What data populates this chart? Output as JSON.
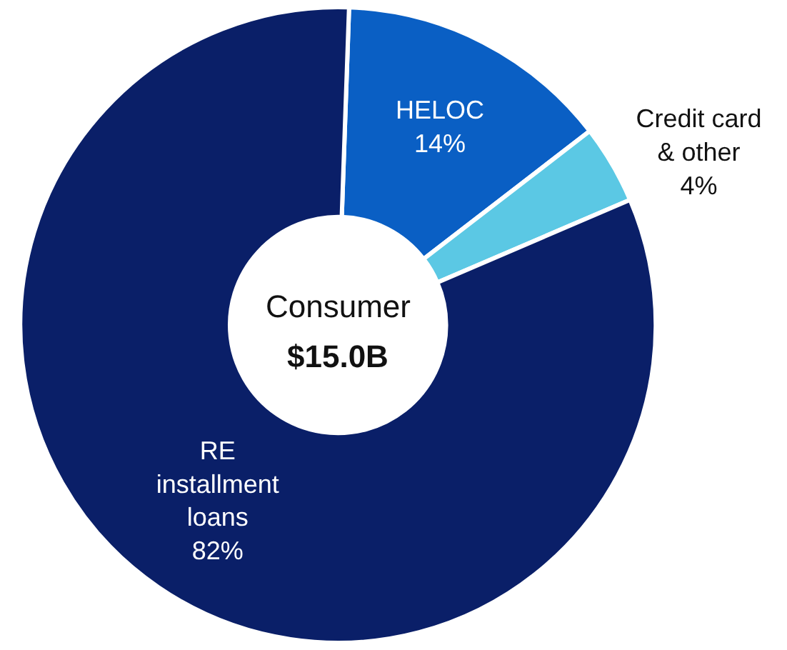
{
  "chart_data": {
    "type": "donut",
    "categories": [
      "HELOC",
      "Credit card\n& other",
      "RE\ninstallment\nloans"
    ],
    "values": [
      14,
      4,
      82
    ],
    "colors": [
      "#0a5fc4",
      "#5bc8e4",
      "#0a1f68"
    ],
    "value_labels": [
      "14%",
      "4%",
      "82%"
    ],
    "legend": false,
    "annotations": [
      "Consumer",
      "$15.0B"
    ]
  }
}
